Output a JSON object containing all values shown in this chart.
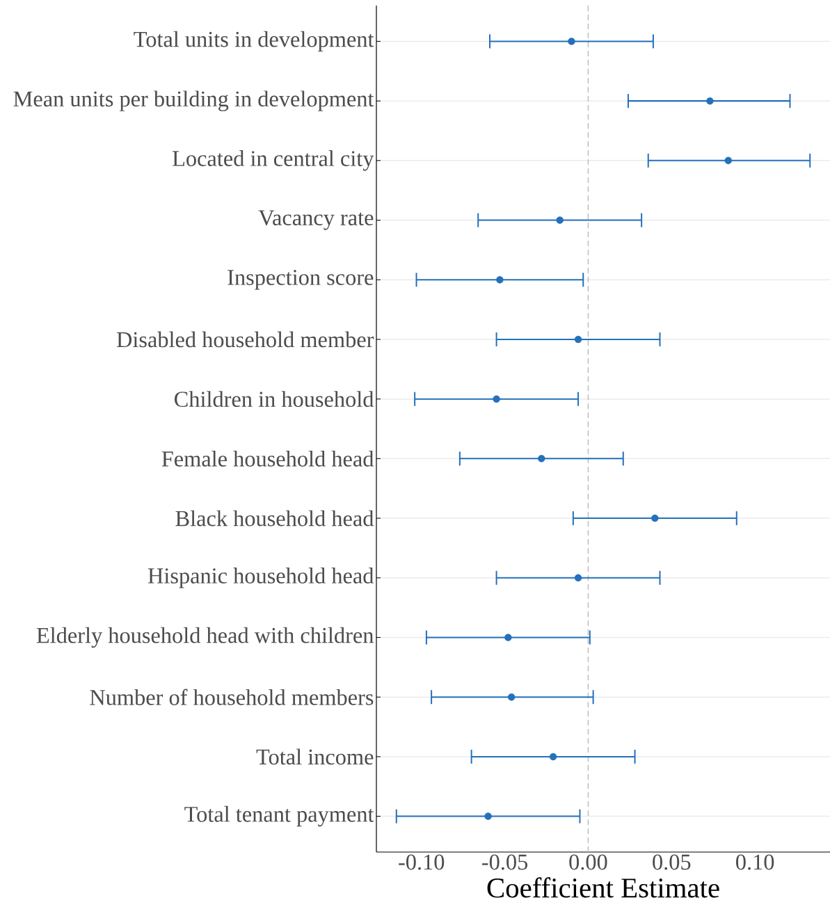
{
  "chart_data": {
    "type": "scatter",
    "orientation": "horizontal",
    "xlabel": "Coefficient Estimate",
    "categories": [
      "Total units in development",
      "Mean units per building in development",
      "Located in central city",
      "Vacancy rate",
      "Inspection score",
      "Disabled household member",
      "Children in household",
      "Female household head",
      "Black household head",
      "Hispanic household head",
      "Elderly household head with children",
      "Number of household members",
      "Total income",
      "Total tenant payment"
    ],
    "values": [
      -0.01,
      0.073,
      0.084,
      -0.017,
      -0.053,
      -0.006,
      -0.055,
      -0.028,
      0.04,
      -0.006,
      -0.048,
      -0.046,
      -0.021,
      -0.06
    ],
    "errors": [
      [
        -0.059,
        0.039
      ],
      [
        0.024,
        0.121
      ],
      [
        0.036,
        0.133
      ],
      [
        -0.066,
        0.032
      ],
      [
        -0.103,
        -0.003
      ],
      [
        -0.055,
        0.043
      ],
      [
        -0.104,
        -0.006
      ],
      [
        -0.077,
        0.021
      ],
      [
        -0.009,
        0.089
      ],
      [
        -0.055,
        0.043
      ],
      [
        -0.097,
        0.001
      ],
      [
        -0.094,
        0.003
      ],
      [
        -0.07,
        0.028
      ],
      [
        -0.115,
        -0.005
      ]
    ],
    "color": "#2470bb",
    "grid": "y",
    "xlim": [
      -0.127,
      0.145
    ],
    "xticks": [
      {
        "value": -0.1,
        "label": "-0.10"
      },
      {
        "value": -0.05,
        "label": "-0.05"
      },
      {
        "value": 0,
        "label": "0.00"
      },
      {
        "value": 0.05,
        "label": "0.05"
      },
      {
        "value": 0.1,
        "label": "0.10"
      }
    ],
    "ref_lines": [
      {
        "axis": "x",
        "value": 0,
        "color": "#bdbdbd",
        "line_style": "dashed"
      }
    ]
  }
}
